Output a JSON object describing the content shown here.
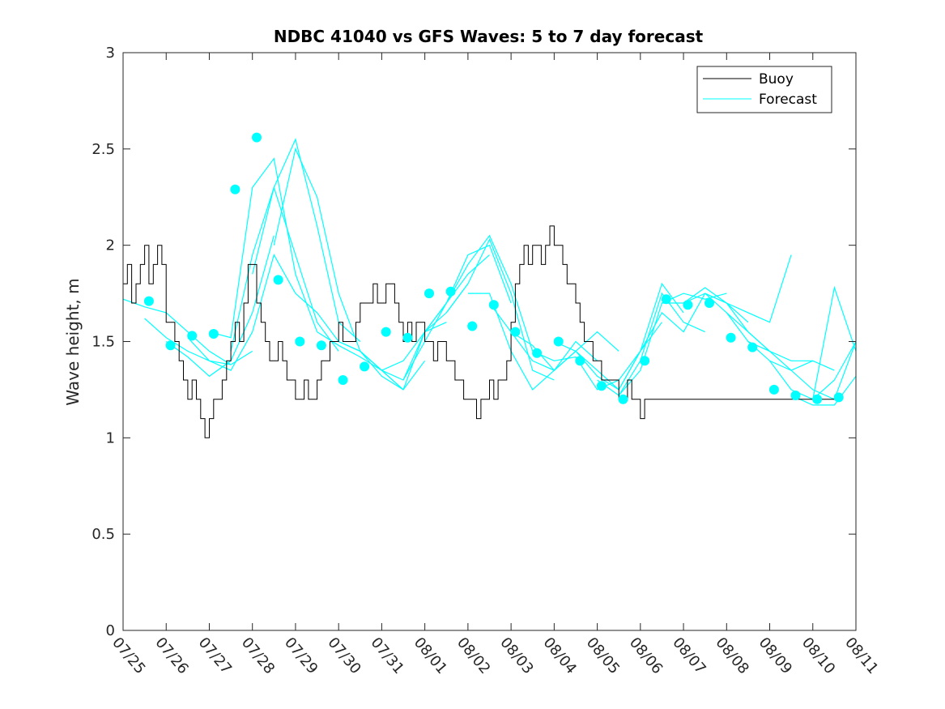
{
  "chart_data": {
    "type": "line",
    "title": "NDBC 41040 vs GFS Waves: 5 to 7 day forecast",
    "xlabel": "",
    "ylabel": "Wave height, m",
    "xlim": [
      "07/25",
      "08/11"
    ],
    "ylim": [
      0,
      3
    ],
    "x_tick_labels": [
      "07/25",
      "07/26",
      "07/27",
      "07/28",
      "07/29",
      "07/30",
      "07/31",
      "08/01",
      "08/02",
      "08/03",
      "08/04",
      "08/05",
      "08/06",
      "08/07",
      "08/08",
      "08/09",
      "08/10",
      "08/11"
    ],
    "y_ticks": [
      0,
      0.5,
      1,
      1.5,
      2,
      2.5,
      3
    ],
    "y_tick_labels": [
      "0",
      "0.5",
      "1",
      "1.5",
      "2",
      "2.5",
      "3"
    ],
    "grid": false,
    "legend_position": "top-right",
    "colors": {
      "buoy": "#000000",
      "forecast": "#00ffff",
      "forecast_points": "#00ffff"
    },
    "series": [
      {
        "name": "Buoy",
        "note_x_units": "days after 07/25",
        "x": [
          0,
          0.1,
          0.2,
          0.3,
          0.4,
          0.5,
          0.6,
          0.7,
          0.8,
          0.9,
          1.0,
          1.1,
          1.2,
          1.3,
          1.4,
          1.5,
          1.6,
          1.7,
          1.8,
          1.9,
          2.0,
          2.1,
          2.2,
          2.3,
          2.4,
          2.5,
          2.6,
          2.7,
          2.8,
          2.9,
          3.0,
          3.1,
          3.2,
          3.3,
          3.4,
          3.5,
          3.6,
          3.7,
          3.8,
          3.9,
          4.0,
          4.1,
          4.2,
          4.3,
          4.4,
          4.5,
          4.6,
          4.7,
          4.8,
          4.9,
          5.0,
          5.1,
          5.2,
          5.3,
          5.4,
          5.5,
          5.6,
          5.7,
          5.8,
          5.9,
          6.0,
          6.1,
          6.2,
          6.3,
          6.4,
          6.5,
          6.6,
          6.7,
          6.8,
          6.9,
          7.0,
          7.1,
          7.2,
          7.3,
          7.4,
          7.5,
          7.6,
          7.7,
          7.8,
          7.9,
          8.0,
          8.1,
          8.2,
          8.3,
          8.4,
          8.5,
          8.6,
          8.7,
          8.8,
          8.9,
          9.0,
          9.1,
          9.2,
          9.3,
          9.4,
          9.5,
          9.6,
          9.7,
          9.8,
          9.9,
          10.0,
          10.1,
          10.2,
          10.3,
          10.4,
          10.5,
          10.6,
          10.7,
          10.8,
          10.9,
          11.0,
          11.1,
          11.2,
          11.3,
          11.4,
          11.5,
          11.6,
          11.7,
          11.8,
          11.9,
          12.0,
          12.1,
          12.2,
          12.3,
          12.4,
          12.5,
          12.6,
          12.7,
          12.8,
          12.9,
          13.0,
          13.1,
          13.2,
          13.3,
          13.4,
          13.5,
          13.6,
          13.7,
          13.8,
          13.9,
          14.0,
          14.1,
          14.2,
          14.3,
          14.4,
          14.5,
          14.6,
          14.7,
          14.8,
          14.9,
          15.0,
          15.1,
          15.2,
          15.3,
          15.4,
          15.5,
          15.6,
          15.7,
          15.8,
          15.9,
          16.0,
          16.1,
          16.2,
          16.3,
          16.4,
          16.5
        ],
        "y": [
          1.8,
          1.9,
          1.7,
          1.8,
          1.9,
          2.0,
          1.8,
          1.9,
          2.0,
          1.9,
          1.6,
          1.6,
          1.5,
          1.4,
          1.3,
          1.2,
          1.3,
          1.2,
          1.1,
          1.0,
          1.1,
          1.2,
          1.2,
          1.3,
          1.4,
          1.5,
          1.6,
          1.5,
          1.7,
          1.9,
          1.9,
          1.7,
          1.6,
          1.5,
          1.4,
          1.4,
          1.5,
          1.4,
          1.3,
          1.3,
          1.2,
          1.2,
          1.3,
          1.2,
          1.2,
          1.3,
          1.4,
          1.4,
          1.5,
          1.5,
          1.6,
          1.5,
          1.5,
          1.5,
          1.6,
          1.7,
          1.7,
          1.7,
          1.8,
          1.7,
          1.7,
          1.8,
          1.8,
          1.7,
          1.6,
          1.5,
          1.6,
          1.5,
          1.6,
          1.6,
          1.5,
          1.5,
          1.4,
          1.5,
          1.5,
          1.4,
          1.4,
          1.3,
          1.3,
          1.2,
          1.2,
          1.2,
          1.1,
          1.2,
          1.2,
          1.3,
          1.2,
          1.3,
          1.3,
          1.4,
          1.6,
          1.8,
          1.9,
          2.0,
          1.9,
          2.0,
          2.0,
          1.9,
          2.0,
          2.1,
          2.0,
          2.0,
          1.9,
          1.8,
          1.8,
          1.7,
          1.6,
          1.5,
          1.5,
          1.4,
          1.4,
          1.3,
          1.3,
          1.3,
          1.3,
          1.2,
          1.2,
          1.3,
          1.2,
          1.2,
          1.1,
          1.2,
          1.2,
          1.2,
          1.2,
          1.2,
          1.2,
          1.2,
          1.2,
          1.2,
          1.2,
          1.2,
          1.2,
          1.2,
          1.2,
          1.2,
          1.2,
          1.2,
          1.2,
          1.2,
          1.2,
          1.2,
          1.2,
          1.2,
          1.2,
          1.2,
          1.2,
          1.2,
          1.2,
          1.2,
          1.2,
          1.2,
          1.2,
          1.2,
          1.2,
          1.2,
          1.2,
          1.2,
          1.2,
          1.2,
          1.2,
          1.2,
          1.2,
          1.2,
          1.2,
          1.2
        ]
      },
      {
        "name": "Forecast",
        "note_x_units": "days after 07/25",
        "runs": [
          {
            "x": [
              0.0,
              0.5,
              1.0,
              1.5,
              2.0,
              2.5
            ],
            "y": [
              1.72,
              1.68,
              1.65,
              1.55,
              1.45,
              1.38
            ]
          },
          {
            "x": [
              0.5,
              1.0,
              1.5,
              2.0,
              2.5,
              3.0
            ],
            "y": [
              1.62,
              1.52,
              1.45,
              1.4,
              1.38,
              1.45
            ]
          },
          {
            "x": [
              1.0,
              1.5,
              2.0,
              2.5,
              3.0,
              3.5
            ],
            "y": [
              1.5,
              1.42,
              1.32,
              1.4,
              1.65,
              2.05
            ]
          },
          {
            "x": [
              1.5,
              2.0,
              2.5,
              3.0,
              3.5,
              4.0
            ],
            "y": [
              1.52,
              1.4,
              1.35,
              1.55,
              1.95,
              1.75
            ]
          },
          {
            "x": [
              2.0,
              2.5,
              3.0,
              3.5,
              4.0,
              4.5
            ],
            "y": [
              1.55,
              1.52,
              2.3,
              2.45,
              1.85,
              1.55
            ]
          },
          {
            "x": [
              2.5,
              3.0,
              3.5,
              4.0,
              4.5,
              5.0
            ],
            "y": [
              1.45,
              1.95,
              2.3,
              1.95,
              1.6,
              1.45
            ]
          },
          {
            "x": [
              3.0,
              3.5,
              4.0,
              4.5,
              5.0,
              5.5
            ],
            "y": [
              1.85,
              2.3,
              2.55,
              2.1,
              1.6,
              1.5
            ]
          },
          {
            "x": [
              3.5,
              4.0,
              4.5,
              5.0,
              5.5,
              6.0
            ],
            "y": [
              2.0,
              2.5,
              2.25,
              1.75,
              1.45,
              1.35
            ]
          },
          {
            "x": [
              4.0,
              4.5,
              5.0,
              5.5,
              6.0,
              6.5
            ],
            "y": [
              1.75,
              1.65,
              1.5,
              1.45,
              1.35,
              1.25
            ]
          },
          {
            "x": [
              4.5,
              5.0,
              5.5,
              6.0,
              6.5,
              7.0
            ],
            "y": [
              1.55,
              1.48,
              1.42,
              1.35,
              1.25,
              1.4
            ]
          },
          {
            "x": [
              5.0,
              5.5,
              6.0,
              6.5,
              7.0,
              7.5
            ],
            "y": [
              1.5,
              1.45,
              1.35,
              1.4,
              1.55,
              1.6
            ]
          },
          {
            "x": [
              5.5,
              6.0,
              6.5,
              7.0,
              7.5,
              8.0
            ],
            "y": [
              1.45,
              1.32,
              1.25,
              1.55,
              1.65,
              1.8
            ]
          },
          {
            "x": [
              6.0,
              6.5,
              7.0,
              7.5,
              8.0,
              8.5
            ],
            "y": [
              1.35,
              1.3,
              1.55,
              1.7,
              1.85,
              1.95
            ]
          },
          {
            "x": [
              6.5,
              7.0,
              7.5,
              8.0,
              8.5,
              9.0
            ],
            "y": [
              1.3,
              1.5,
              1.7,
              1.95,
              2.0,
              1.7
            ]
          },
          {
            "x": [
              7.0,
              7.5,
              8.0,
              8.5,
              9.0,
              9.5
            ],
            "y": [
              1.55,
              1.7,
              1.9,
              2.05,
              1.8,
              1.45
            ]
          },
          {
            "x": [
              7.5,
              8.0,
              8.5,
              9.0,
              9.5,
              10.0
            ],
            "y": [
              1.65,
              1.8,
              2.03,
              1.75,
              1.35,
              1.3
            ]
          },
          {
            "x": [
              8.0,
              8.5,
              9.0,
              9.5,
              10.0,
              10.5
            ],
            "y": [
              1.75,
              1.75,
              1.45,
              1.25,
              1.35,
              1.45
            ]
          },
          {
            "x": [
              8.5,
              9.0,
              9.5,
              10.0,
              10.5,
              11.0
            ],
            "y": [
              1.7,
              1.55,
              1.4,
              1.35,
              1.5,
              1.4
            ]
          },
          {
            "x": [
              9.0,
              9.5,
              10.0,
              10.5,
              11.0,
              11.5
            ],
            "y": [
              1.55,
              1.48,
              1.35,
              1.45,
              1.55,
              1.45
            ]
          },
          {
            "x": [
              9.5,
              10.0,
              10.5,
              11.0,
              11.5,
              12.0
            ],
            "y": [
              1.45,
              1.4,
              1.42,
              1.25,
              1.3,
              1.45
            ]
          },
          {
            "x": [
              10.0,
              10.5,
              11.0,
              11.5,
              12.0,
              12.5
            ],
            "y": [
              1.5,
              1.45,
              1.35,
              1.25,
              1.45,
              1.6
            ]
          },
          {
            "x": [
              10.5,
              11.0,
              11.5,
              12.0,
              12.5,
              13.0
            ],
            "y": [
              1.45,
              1.32,
              1.25,
              1.45,
              1.8,
              1.65
            ]
          },
          {
            "x": [
              11.0,
              11.5,
              12.0,
              12.5,
              13.0,
              13.5
            ],
            "y": [
              1.3,
              1.22,
              1.4,
              1.75,
              1.6,
              1.55
            ]
          },
          {
            "x": [
              11.5,
              12.0,
              12.5,
              13.0,
              13.5,
              14.0
            ],
            "y": [
              1.22,
              1.35,
              1.7,
              1.75,
              1.72,
              1.75
            ]
          },
          {
            "x": [
              12.0,
              12.5,
              13.0,
              13.5,
              14.0,
              14.5
            ],
            "y": [
              1.45,
              1.65,
              1.55,
              1.75,
              1.7,
              1.6
            ]
          },
          {
            "x": [
              12.5,
              13.0,
              13.5,
              14.0,
              14.5,
              15.0
            ],
            "y": [
              1.7,
              1.7,
              1.75,
              1.7,
              1.55,
              1.45
            ]
          },
          {
            "x": [
              13.0,
              13.5,
              14.0,
              14.5,
              15.0,
              15.5
            ],
            "y": [
              1.7,
              1.78,
              1.7,
              1.65,
              1.6,
              1.95
            ]
          },
          {
            "x": [
              13.5,
              14.0,
              14.5,
              15.0,
              15.5,
              16.0
            ],
            "y": [
              1.75,
              1.65,
              1.55,
              1.45,
              1.4,
              1.4
            ]
          },
          {
            "x": [
              14.0,
              14.5,
              15.0,
              15.5,
              16.0,
              16.5
            ],
            "y": [
              1.65,
              1.5,
              1.45,
              1.35,
              1.4,
              1.35
            ]
          },
          {
            "x": [
              14.5,
              15.0,
              15.5,
              16.0,
              16.5,
              17.0
            ],
            "y": [
              1.5,
              1.4,
              1.35,
              1.25,
              1.2,
              1.5
            ]
          },
          {
            "x": [
              15.0,
              15.5,
              16.0,
              16.5,
              17.0
            ],
            "y": [
              1.4,
              1.25,
              1.2,
              1.78,
              1.45
            ]
          },
          {
            "x": [
              15.5,
              16.0,
              16.5,
              17.0
            ],
            "y": [
              1.22,
              1.17,
              1.17,
              1.32
            ]
          },
          {
            "x": [
              16.0,
              16.5,
              17.0
            ],
            "y": [
              1.2,
              1.3,
              1.5
            ]
          }
        ]
      },
      {
        "name": "",
        "marker": "circle",
        "note_x_units": "days after 07/25",
        "x": [
          0.6,
          1.1,
          1.6,
          2.1,
          2.6,
          3.1,
          3.6,
          4.1,
          4.6,
          5.1,
          5.6,
          6.1,
          6.6,
          7.1,
          7.6,
          8.1,
          8.6,
          9.1,
          9.6,
          10.1,
          10.6,
          11.1,
          11.6,
          12.1,
          12.6,
          13.1,
          13.6,
          14.1,
          14.6,
          15.1,
          15.6,
          16.1,
          16.6
        ],
        "y": [
          1.71,
          1.48,
          1.53,
          1.54,
          2.29,
          2.56,
          1.82,
          1.5,
          1.48,
          1.3,
          1.37,
          1.55,
          1.52,
          1.75,
          1.76,
          1.58,
          1.69,
          1.55,
          1.44,
          1.5,
          1.4,
          1.27,
          1.2,
          1.4,
          1.72,
          1.69,
          1.7,
          1.52,
          1.47,
          1.25,
          1.22,
          1.2,
          1.21
        ]
      }
    ]
  }
}
